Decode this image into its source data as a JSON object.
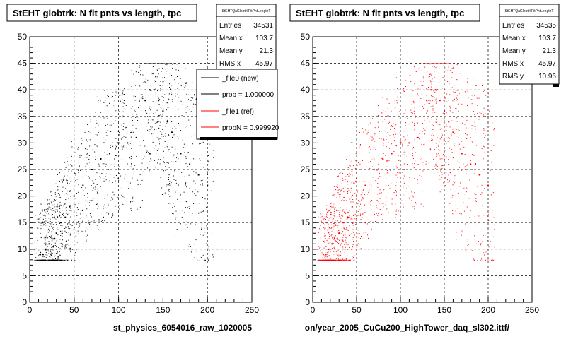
{
  "chart_data": [
    {
      "type": "scatter",
      "title": "StEHT globtrk: N fit pnts vs length, tpc",
      "xlabel": "st_physics_6054016_raw_1020005",
      "ylabel": "",
      "xlim": [
        0,
        250
      ],
      "ylim": [
        0,
        50
      ],
      "xticks": [
        "0",
        "50",
        "100",
        "150",
        "200",
        "250"
      ],
      "yticks": [
        "0",
        "5",
        "10",
        "15",
        "20",
        "25",
        "30",
        "35",
        "40",
        "45",
        "50"
      ],
      "grid": true,
      "point_color": "#000000",
      "stats": {
        "title": "StEHTQaGlobtrkFitPntLengthT",
        "rows": [
          {
            "label": "Entries",
            "value": "34531"
          },
          {
            "label": "Mean x",
            "value": "103.7"
          },
          {
            "label": "Mean y",
            "value": "21.3"
          },
          {
            "label": "RMS x",
            "value": "45.97"
          }
        ]
      },
      "legend": [
        {
          "label": "_file0 (new)",
          "color": "#000000"
        },
        {
          "label": "prob = 1.000000",
          "color": "#000000"
        },
        {
          "label": "_file1 (ref)",
          "color": "#ff0000"
        },
        {
          "label": "probN = 0.999920",
          "color": "#ff0000"
        }
      ],
      "series": [
        {
          "x": [
            12,
            15,
            18,
            22,
            25,
            28,
            30,
            35,
            40,
            45,
            50,
            60,
            70,
            80,
            90,
            100,
            110,
            120,
            130,
            135,
            140,
            145,
            150,
            155,
            160,
            170,
            180,
            190,
            200
          ],
          "y": [
            9,
            9,
            10,
            11,
            12,
            12,
            13,
            15,
            16,
            18,
            20,
            22,
            25,
            27,
            28,
            30,
            30,
            31,
            38,
            40,
            40,
            38,
            36,
            34,
            32,
            28,
            26,
            24,
            22
          ]
        }
      ]
    },
    {
      "type": "scatter",
      "title": "StEHT globtrk: N fit pnts vs length, tpc",
      "xlabel": "on/year_2005_CuCu200_HighTower_daq_sl302.ittf/",
      "ylabel": "",
      "xlim": [
        0,
        250
      ],
      "ylim": [
        0,
        50
      ],
      "xticks": [
        "0",
        "50",
        "100",
        "150",
        "200",
        "250"
      ],
      "yticks": [
        "0",
        "5",
        "10",
        "15",
        "20",
        "25",
        "30",
        "35",
        "40",
        "45",
        "50"
      ],
      "grid": true,
      "point_color": "#ff0000",
      "stats": {
        "title": "StEHTQaGlobtrkFitPntLengthT",
        "rows": [
          {
            "label": "Entries",
            "value": "34535"
          },
          {
            "label": "Mean x",
            "value": "103.7"
          },
          {
            "label": "Mean y",
            "value": "21.3"
          },
          {
            "label": "RMS x",
            "value": "45.97"
          },
          {
            "label": "RMS y",
            "value": "10.96"
          }
        ]
      },
      "series": [
        {
          "x": [
            12,
            15,
            18,
            22,
            25,
            28,
            30,
            35,
            40,
            45,
            50,
            60,
            70,
            80,
            90,
            100,
            110,
            120,
            130,
            135,
            140,
            145,
            150,
            155,
            160,
            170,
            180,
            190,
            200
          ],
          "y": [
            9,
            9,
            10,
            11,
            12,
            12,
            13,
            15,
            16,
            18,
            20,
            22,
            25,
            27,
            28,
            30,
            30,
            31,
            38,
            40,
            40,
            38,
            36,
            34,
            32,
            28,
            26,
            24,
            22
          ]
        }
      ]
    }
  ]
}
